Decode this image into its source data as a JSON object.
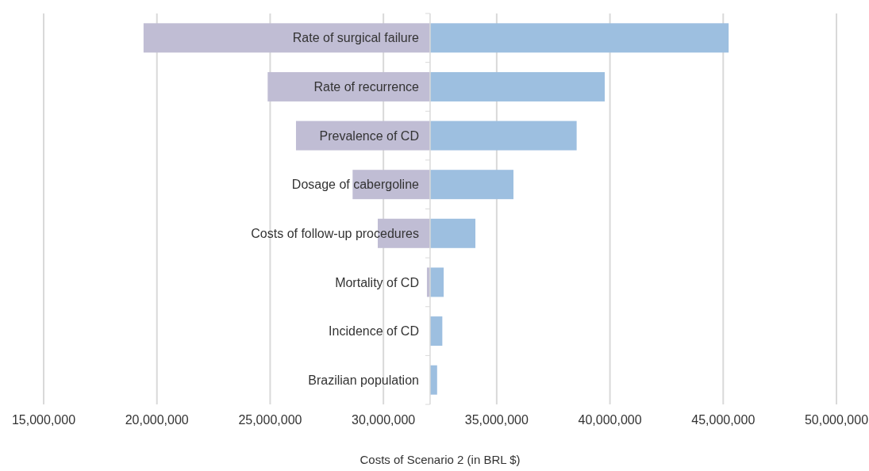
{
  "chart_data": {
    "type": "bar",
    "orientation": "horizontal",
    "xlabel": "Costs of Scenario 2 (in BRL $)",
    "categories": [
      "Rate of surgical failure",
      "Rate of recurrence",
      "Prevalence of CD",
      "Dosage of cabergoline",
      "Costs of follow-up procedures",
      "Mortality of CD",
      "Incidence of CD",
      "Brazilian population"
    ],
    "series": [
      {
        "color": "#c0bdd4",
        "base": [
          19410000,
          24890000,
          26140000,
          28640000,
          29750000,
          31920000,
          null,
          null
        ],
        "values": [
          12650000,
          7170000,
          5920000,
          3420000,
          2310000,
          140000,
          null,
          null
        ]
      },
      {
        "color": "#9dbfe0",
        "base": [
          32060000,
          32060000,
          32060000,
          32060000,
          32060000,
          32060000,
          32060000,
          32060000
        ],
        "values": [
          13180000,
          7710000,
          6470000,
          3680000,
          2000000,
          600000,
          540000,
          310000
        ]
      }
    ],
    "xlim": [
      15000000,
      50000000
    ],
    "xticks": [
      {
        "value": 15000000,
        "label": "15,000,000"
      },
      {
        "value": 20000000,
        "label": "20,000,000"
      },
      {
        "value": 25000000,
        "label": "25,000,000"
      },
      {
        "value": 30000000,
        "label": "30,000,000"
      },
      {
        "value": 35000000,
        "label": "35,000,000"
      },
      {
        "value": 40000000,
        "label": "40,000,000"
      },
      {
        "value": 45000000,
        "label": "45,000,000"
      },
      {
        "value": 50000000,
        "label": "50,000,000"
      }
    ],
    "grid": "x"
  }
}
